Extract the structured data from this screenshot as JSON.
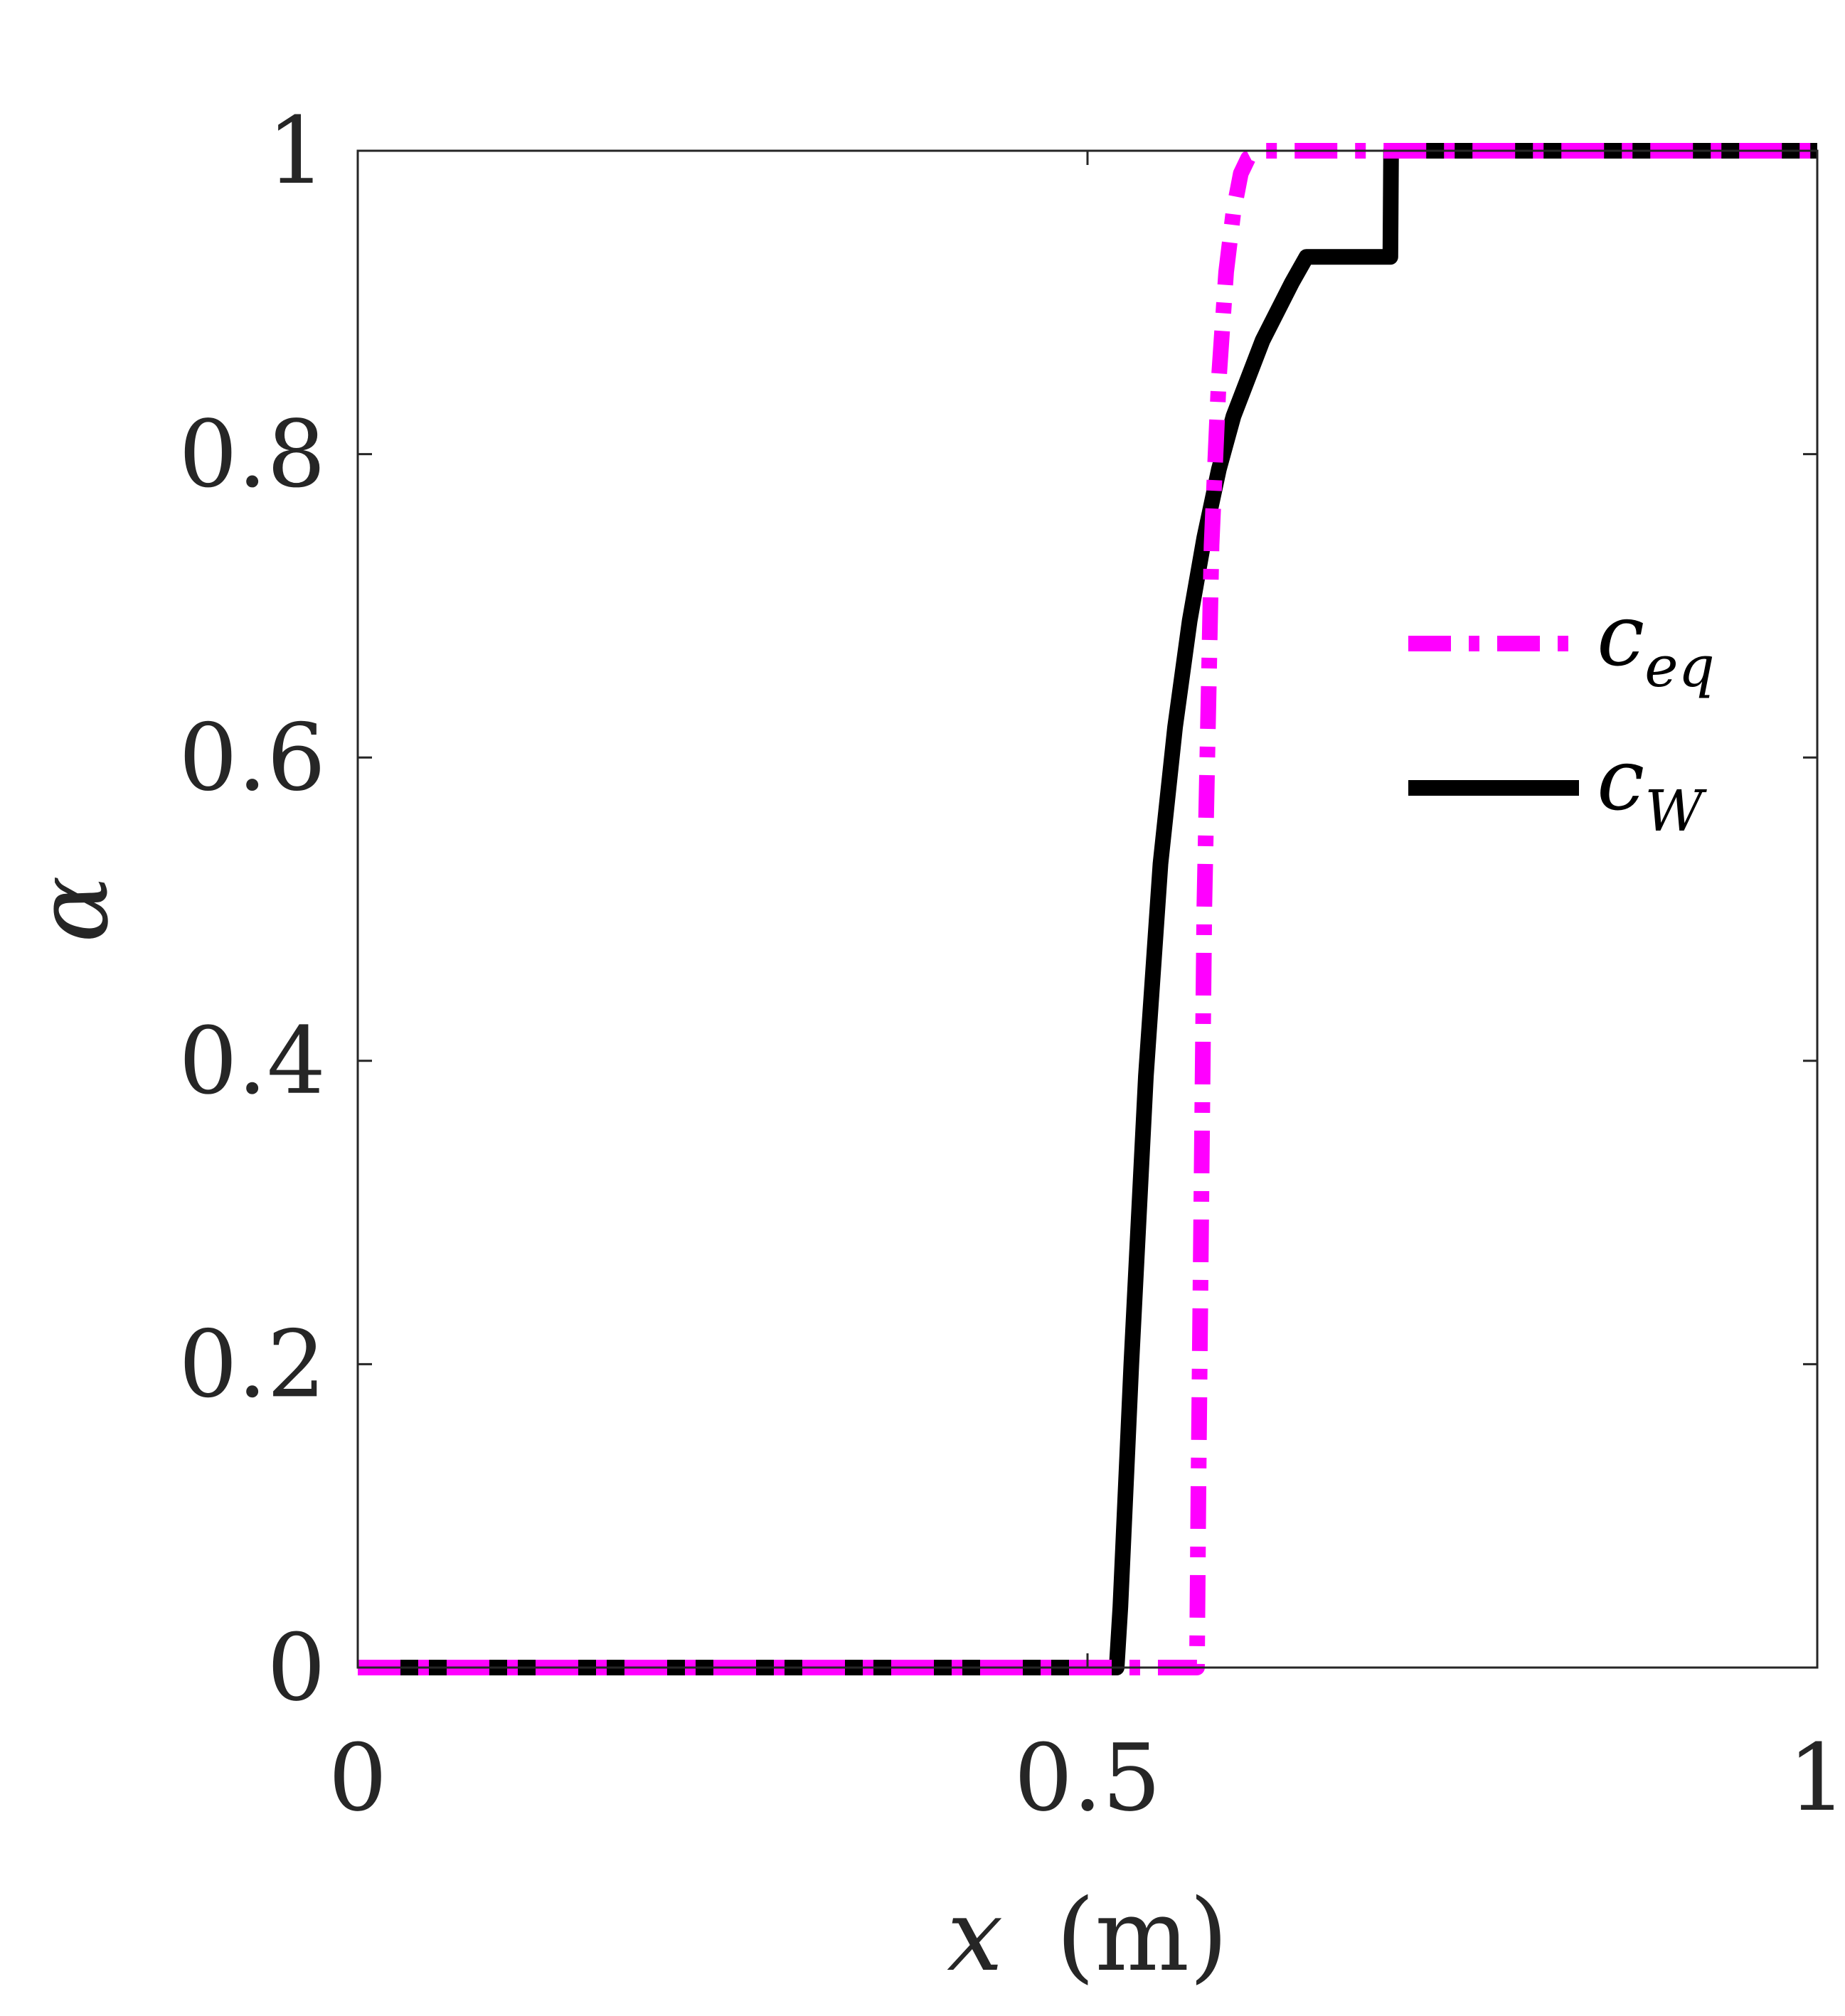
{
  "chart_data": {
    "type": "line",
    "xlabel_var": "x",
    "xlabel_unit": "(m)",
    "ylabel": "α",
    "xlim": [
      0,
      1
    ],
    "ylim": [
      0,
      1
    ],
    "xticks": [
      0,
      0.5,
      1
    ],
    "xtick_labels": [
      "0",
      "0.5",
      "1"
    ],
    "yticks": [
      0,
      0.2,
      0.4,
      0.6,
      0.8,
      1
    ],
    "ytick_labels": [
      "0",
      "0.2",
      "0.4",
      "0.6",
      "0.8",
      "1"
    ],
    "grid": false,
    "legend_position": "right",
    "series": [
      {
        "id": "cW",
        "name_main": "c",
        "name_sub": "W",
        "color": "#000000",
        "dash": "solid",
        "x": [
          0,
          0.52,
          0.5225,
          0.53,
          0.54,
          0.55,
          0.56,
          0.57,
          0.58,
          0.59,
          0.6,
          0.62,
          0.64,
          0.65,
          0.7,
          0.7075,
          0.708,
          0.72,
          0.8,
          0.9,
          1.0
        ],
        "y": [
          0,
          0,
          0.04,
          0.2,
          0.39,
          0.53,
          0.62,
          0.69,
          0.745,
          0.79,
          0.825,
          0.875,
          0.913,
          0.93,
          0.93,
          0.93,
          1.0,
          1.0,
          1.0,
          1.0,
          1.0
        ]
      },
      {
        "id": "ceq",
        "name_main": "c",
        "name_sub": "eq",
        "color": "#ff00ff",
        "dash": "dashdot",
        "x": [
          0,
          0.575,
          0.576,
          0.58,
          0.585,
          0.59,
          0.595,
          0.6,
          0.605,
          0.61,
          0.62,
          0.7,
          0.8,
          0.9,
          1.0
        ],
        "y": [
          0,
          0,
          0.12,
          0.5,
          0.74,
          0.85,
          0.92,
          0.96,
          0.985,
          0.995,
          1.0,
          1.0,
          1.0,
          1.0,
          1.0
        ]
      }
    ]
  }
}
